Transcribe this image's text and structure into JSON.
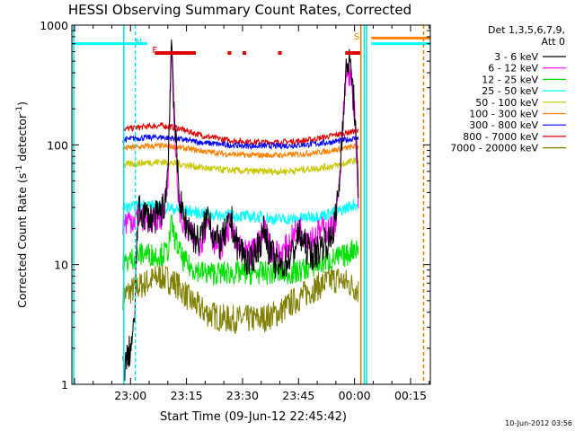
{
  "chart_data": {
    "type": "line",
    "title": "HESSI Observing Summary Count Rates, Corrected",
    "xlabel": "Start Time (09-Jun-12 22:45:42)",
    "ylabel": "Corrected Count Rate (s",
    "ylabel_sup1": "-1",
    "ylabel_mid": " detector",
    "ylabel_sup2": "-1",
    "ylabel_end": ")",
    "y_scale": "log",
    "ylim": [
      1,
      1000
    ],
    "xlim_min": [
      -15.7,
      80.3
    ],
    "x_ticks": [
      {
        "min": 0,
        "label": "23:00"
      },
      {
        "min": 15,
        "label": "23:15"
      },
      {
        "min": 30,
        "label": "23:30"
      },
      {
        "min": 45,
        "label": "23:45"
      },
      {
        "min": 60,
        "label": "00:00"
      },
      {
        "min": 75,
        "label": "00:15"
      }
    ],
    "y_ticks": [
      {
        "value": 1,
        "label": "1"
      },
      {
        "value": 10,
        "label": "10"
      },
      {
        "value": 100,
        "label": "100"
      },
      {
        "value": 1000,
        "label": "1000"
      }
    ],
    "legend": {
      "header1": "Det 1,3,5,6,7,9,",
      "header2": "Att 0",
      "position": "right-outside"
    },
    "timestamp": "10-Jun-2012 03:56",
    "flags": [
      {
        "label": "N",
        "color": "#00e5e5",
        "min": 1.3
      },
      {
        "label": "F",
        "color": "#e00000",
        "min": 5.8
      },
      {
        "label": "S",
        "color": "#e08000",
        "min": 59.8
      }
    ],
    "flare_bars": [
      [
        6.5,
        17.5
      ],
      [
        26.0,
        27.0
      ],
      [
        30.0,
        31.0
      ],
      [
        39.5,
        40.5
      ],
      [
        57.5,
        61.5
      ]
    ],
    "gap": [
      61.5,
      64.0
    ],
    "series": [
      {
        "name": "3 - 6 keV",
        "color": "#000000",
        "x": [
          -2,
          -1,
          0,
          1,
          2,
          3,
          4,
          5,
          6,
          7,
          8,
          9,
          10,
          11,
          12,
          13,
          14,
          15,
          16,
          17,
          18,
          19,
          20,
          21,
          22,
          23,
          24,
          25,
          26,
          27,
          28,
          29,
          30,
          31,
          32,
          33,
          34,
          35,
          36,
          37,
          38,
          39,
          40,
          41,
          42,
          43,
          44,
          45,
          46,
          47,
          48,
          49,
          50,
          51,
          52,
          53,
          54,
          55,
          56,
          57,
          58,
          59,
          60,
          61
        ],
        "y": [
          1.3,
          1.6,
          2,
          3,
          28,
          27,
          26,
          25,
          24,
          25,
          28,
          30,
          60,
          800,
          120,
          40,
          25,
          22,
          20,
          17,
          16,
          17,
          22,
          28,
          18,
          16,
          15,
          17,
          20,
          24,
          16,
          14,
          13,
          11,
          10,
          12,
          14,
          16,
          20,
          14,
          12,
          10,
          9.5,
          10,
          11,
          12,
          14,
          18,
          16,
          14,
          13,
          12,
          13,
          14,
          16,
          15,
          18,
          25,
          50,
          200,
          500,
          450,
          200,
          40
        ]
      },
      {
        "name": "6 - 12 keV",
        "color": "#ff00ff",
        "x": [
          -2,
          -1,
          0,
          1,
          2,
          3,
          4,
          5,
          6,
          7,
          8,
          9,
          10,
          11,
          12,
          13,
          14,
          15,
          16,
          17,
          18,
          19,
          20,
          21,
          22,
          23,
          24,
          25,
          26,
          27,
          28,
          29,
          30,
          31,
          32,
          33,
          34,
          35,
          36,
          37,
          38,
          39,
          40,
          41,
          42,
          43,
          44,
          45,
          46,
          47,
          48,
          49,
          50,
          51,
          52,
          53,
          54,
          55,
          56,
          57,
          58,
          59,
          60,
          61
        ],
        "y": [
          22,
          23,
          24,
          24,
          25,
          25,
          24,
          24,
          23,
          24,
          25,
          28,
          55,
          650,
          90,
          32,
          22,
          19,
          18,
          16,
          15,
          16,
          20,
          24,
          17,
          15,
          14,
          16,
          19,
          22,
          15,
          13.5,
          13,
          12,
          12,
          13,
          15,
          17,
          21,
          15,
          13,
          12.5,
          12,
          13,
          14,
          16,
          18,
          20,
          19,
          18,
          17,
          17,
          18,
          19,
          20,
          19,
          20,
          25,
          45,
          180,
          420,
          380,
          180,
          30
        ]
      },
      {
        "name": "12 - 25 keV",
        "color": "#00e000",
        "x": [
          -2,
          0,
          2,
          4,
          6,
          8,
          10,
          11,
          12,
          14,
          16,
          18,
          20,
          22,
          24,
          26,
          28,
          30,
          32,
          34,
          36,
          38,
          40,
          42,
          44,
          46,
          48,
          50,
          52,
          54,
          56,
          58,
          60,
          61
        ],
        "y": [
          10,
          11,
          12,
          12.5,
          12,
          12,
          13,
          22,
          16,
          11,
          9.5,
          9,
          8.5,
          8.5,
          8.5,
          8.5,
          8.5,
          8.5,
          8.5,
          8.5,
          8.5,
          8.5,
          8.5,
          8.5,
          8.5,
          9,
          9.5,
          10,
          10.5,
          11,
          11.5,
          12,
          14,
          13
        ]
      },
      {
        "name": "25 - 50 keV",
        "color": "#00ffff",
        "x": [
          -2,
          0,
          2,
          4,
          6,
          8,
          10,
          12,
          14,
          16,
          18,
          20,
          22,
          24,
          26,
          28,
          30,
          32,
          34,
          36,
          38,
          40,
          42,
          44,
          46,
          48,
          50,
          52,
          54,
          56,
          58,
          60,
          61
        ],
        "y": [
          30,
          30,
          31,
          32,
          31,
          30,
          30,
          29,
          28,
          28,
          27,
          27,
          26,
          26,
          26,
          25.5,
          25.5,
          25,
          25,
          25,
          24,
          24,
          24,
          24,
          24.5,
          25,
          25.5,
          26,
          27,
          28,
          30,
          32,
          31
        ]
      },
      {
        "name": "50 - 100 keV",
        "color": "#c8c800",
        "x": [
          -2,
          0,
          4,
          8,
          12,
          16,
          20,
          24,
          28,
          32,
          36,
          40,
          44,
          48,
          52,
          56,
          60,
          61
        ],
        "y": [
          68,
          69,
          71,
          72,
          70,
          67,
          64,
          62,
          61,
          60,
          60,
          60,
          61,
          63,
          65,
          68,
          74,
          73
        ]
      },
      {
        "name": "100 - 300 keV",
        "color": "#ff8000",
        "x": [
          -2,
          0,
          4,
          8,
          12,
          16,
          20,
          24,
          28,
          32,
          36,
          40,
          44,
          48,
          52,
          56,
          60,
          61
        ],
        "y": [
          93,
          95,
          97,
          98,
          96,
          92,
          88,
          85,
          83,
          82,
          82,
          82,
          83,
          85,
          88,
          92,
          97,
          96
        ]
      },
      {
        "name": "300 - 800 keV",
        "color": "#0000ff",
        "x": [
          -2,
          0,
          4,
          8,
          12,
          16,
          20,
          24,
          28,
          32,
          36,
          40,
          44,
          48,
          52,
          56,
          60,
          61
        ],
        "y": [
          110,
          112,
          115,
          116,
          113,
          108,
          104,
          101,
          99,
          98,
          98,
          98,
          99,
          101,
          104,
          108,
          113,
          112
        ]
      },
      {
        "name": "800 - 7000 keV",
        "color": "#e00000",
        "x": [
          -2,
          0,
          4,
          8,
          12,
          16,
          20,
          24,
          28,
          32,
          36,
          40,
          44,
          48,
          52,
          56,
          60,
          61
        ],
        "y": [
          135,
          137,
          142,
          145,
          140,
          128,
          118,
          112,
          108,
          106,
          105,
          105,
          107,
          110,
          116,
          123,
          130,
          128
        ]
      },
      {
        "name": "7000 - 20000 keV",
        "color": "#808000",
        "x": [
          -2,
          0,
          2,
          4,
          6,
          8,
          10,
          12,
          14,
          16,
          18,
          20,
          22,
          24,
          26,
          28,
          30,
          32,
          34,
          36,
          38,
          40,
          42,
          44,
          46,
          48,
          50,
          52,
          54,
          56,
          58,
          60,
          61
        ],
        "y": [
          5.5,
          6,
          6.5,
          7,
          7.5,
          8,
          7.5,
          7,
          6,
          5,
          4.5,
          4,
          3.8,
          3.6,
          3.5,
          3.5,
          3.5,
          3.5,
          3.5,
          3.6,
          3.8,
          4,
          4.5,
          5,
          5.5,
          6,
          6.5,
          7,
          7.5,
          7.5,
          7,
          6.5,
          6
        ]
      }
    ],
    "extra_series": [
      {
        "color": "#00ffff",
        "segments": [
          [
            -15.7,
            4.5,
            700
          ],
          [
            64.5,
            80.3,
            700
          ]
        ]
      },
      {
        "color": "#ff8000",
        "segments": [
          [
            64.5,
            80.3,
            780
          ]
        ]
      }
    ]
  }
}
